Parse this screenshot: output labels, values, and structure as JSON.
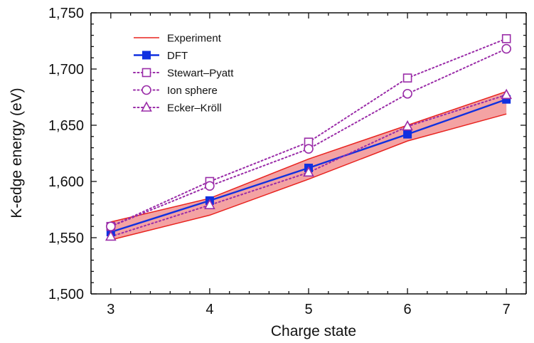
{
  "chart_data": {
    "type": "line",
    "xlabel": "Charge state",
    "ylabel": "K-edge energy (eV)",
    "xlim": [
      2.8,
      7.2
    ],
    "ylim": [
      1500,
      1750
    ],
    "x_ticks": [
      3,
      4,
      5,
      6,
      7
    ],
    "x_tick_labels": [
      "3",
      "4",
      "5",
      "6",
      "7"
    ],
    "y_ticks": [
      1500,
      1550,
      1600,
      1650,
      1700,
      1750
    ],
    "y_tick_labels": [
      "1,500",
      "1,550",
      "1,600",
      "1,650",
      "1,700",
      "1,750"
    ],
    "legend_position": "top-left",
    "x": [
      3,
      4,
      5,
      6,
      7
    ],
    "experiment": {
      "name": "Experiment",
      "color": "#e8231f",
      "fill": "#f4a3a3",
      "upper": [
        1564,
        1585,
        1620,
        1650,
        1680
      ],
      "lower": [
        1548,
        1570,
        1602,
        1636,
        1660
      ]
    },
    "series": [
      {
        "name": "DFT",
        "color": "#1030e0",
        "marker": "filled-square",
        "dash": "solid",
        "values": [
          1555,
          1583,
          1612,
          1642,
          1673
        ]
      },
      {
        "name": "Stewart–Pyatt",
        "color": "#9a2ca8",
        "marker": "open-square",
        "dash": "dotted",
        "values": [
          1560,
          1600,
          1635,
          1692,
          1727
        ]
      },
      {
        "name": "Ion sphere",
        "color": "#9a2ca8",
        "marker": "open-circle",
        "dash": "dotted",
        "values": [
          1560,
          1596,
          1629,
          1678,
          1718
        ]
      },
      {
        "name": "Ecker–Kröll",
        "color": "#9a2ca8",
        "marker": "open-triangle",
        "dash": "dotted",
        "values": [
          1551,
          1579,
          1608,
          1649,
          1677
        ]
      }
    ]
  }
}
